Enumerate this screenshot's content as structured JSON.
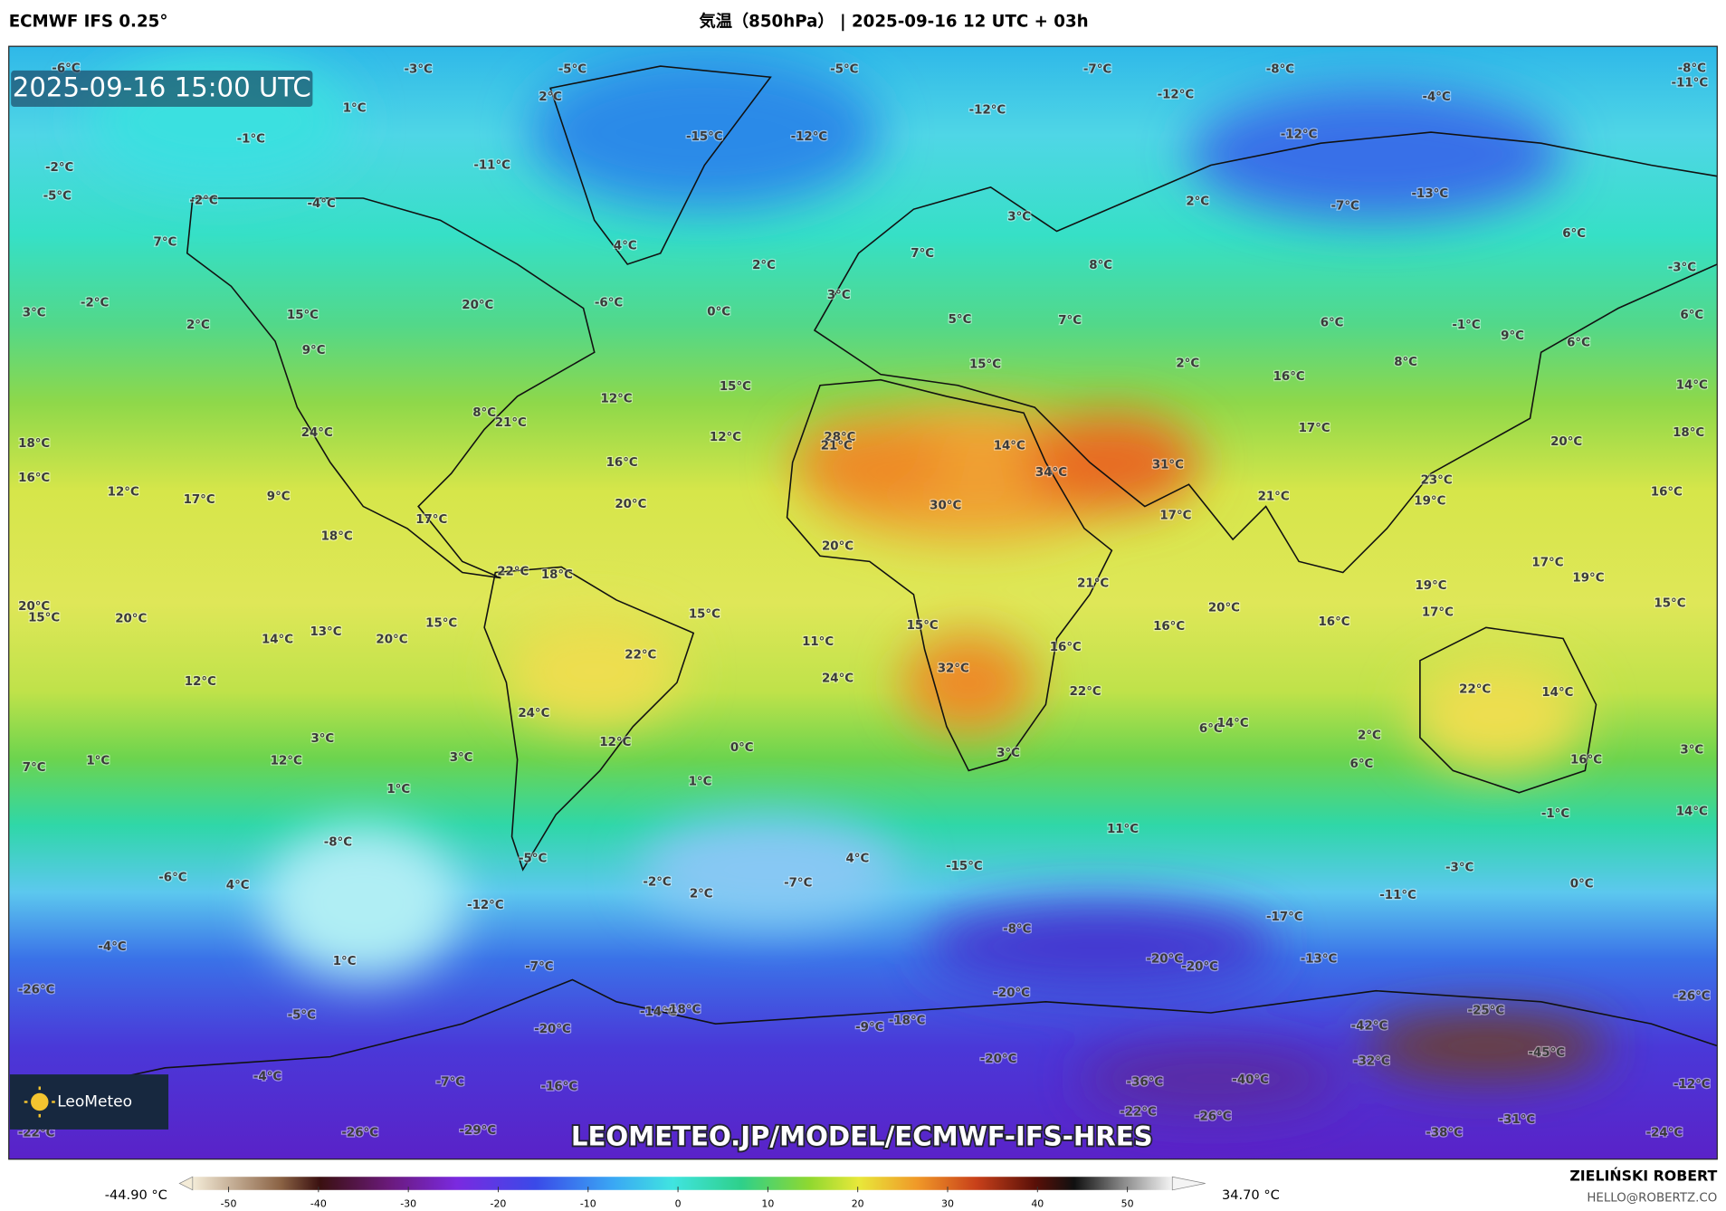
{
  "header": {
    "model": "ECMWF IFS 0.25°",
    "title": "気温（850hPa） | 2025-09-16 12 UTC + 03h"
  },
  "map": {
    "timestamp": "2025-09-16 15:00 UTC",
    "logo": "LeoMeteo",
    "watermark": "LEOMETEO.JP/MODEL/ECMWF-IFS-HRES",
    "labels": [
      "-6°C",
      "-3°C",
      "-5°C",
      "-5°C",
      "-7°C",
      "-8°C",
      "-8°C",
      "-11°C",
      "2°C",
      "1°C",
      "-12°C",
      "-12°C",
      "-4°C",
      "-1°C",
      "-15°C",
      "-12°C",
      "-12°C",
      "-2°C",
      "-11°C",
      "-5°C",
      "-2°C",
      "-4°C",
      "2°C",
      "-7°C",
      "-13°C",
      "7°C",
      "4°C",
      "3°C",
      "7°C",
      "2°C",
      "8°C",
      "6°C",
      "-3°C",
      "-2°C",
      "3°C",
      "20°C",
      "-6°C",
      "0°C",
      "3°C",
      "2°C",
      "15°C",
      "5°C",
      "7°C",
      "6°C",
      "-1°C",
      "9°C",
      "6°C",
      "6°C",
      "9°C",
      "15°C",
      "2°C",
      "8°C",
      "16°C",
      "14°C",
      "15°C",
      "12°C",
      "8°C",
      "21°C",
      "24°C",
      "12°C",
      "28°C",
      "21°C",
      "14°C",
      "17°C",
      "18°C",
      "18°C",
      "20°C",
      "34°C",
      "31°C",
      "16°C",
      "16°C",
      "23°C",
      "12°C",
      "17°C",
      "9°C",
      "21°C",
      "19°C",
      "16°C",
      "20°C",
      "30°C",
      "17°C",
      "17°C",
      "18°C",
      "20°C",
      "22°C",
      "18°C",
      "21°C",
      "17°C",
      "19°C",
      "19°C",
      "20°C",
      "15°C",
      "20°C",
      "20°C",
      "17°C",
      "15°C",
      "15°C",
      "15°C",
      "16°C",
      "16°C",
      "14°C",
      "13°C",
      "20°C",
      "15°C",
      "11°C",
      "16°C",
      "22°C",
      "12°C",
      "24°C",
      "32°C",
      "22°C",
      "22°C",
      "14°C",
      "24°C",
      "3°C",
      "12°C",
      "6°C",
      "14°C",
      "2°C",
      "3°C",
      "7°C",
      "1°C",
      "12°C",
      "3°C",
      "0°C",
      "3°C",
      "6°C",
      "16°C",
      "1°C",
      "1°C",
      "-1°C",
      "14°C",
      "11°C",
      "-8°C",
      "-5°C",
      "4°C",
      "-15°C",
      "-3°C",
      "-6°C",
      "4°C",
      "-2°C",
      "-7°C",
      "2°C",
      "0°C",
      "-11°C",
      "-12°C",
      "-17°C",
      "-8°C",
      "-4°C",
      "1°C",
      "-20°C",
      "-20°C",
      "-13°C",
      "-7°C",
      "-26°C",
      "-20°C",
      "-26°C",
      "-5°C",
      "-14°C",
      "-18°C",
      "-25°C",
      "-20°C",
      "-9°C",
      "-18°C",
      "-42°C",
      "-45°C",
      "-20°C",
      "-32°C",
      "-4°C",
      "-7°C",
      "-36°C",
      "-40°C",
      "-12°C",
      "-16°C",
      "-22°C",
      "-26°C",
      "-31°C",
      "-22°C",
      "-26°C",
      "-29°C",
      "-38°C",
      "-24°C"
    ]
  },
  "colorbar": {
    "min_label": "-44.90 °C",
    "max_label": "34.70 °C",
    "range": [
      -54,
      55
    ],
    "ticks": [
      -50,
      -40,
      -30,
      -20,
      -10,
      0,
      10,
      20,
      30,
      40,
      50
    ]
  },
  "footer": {
    "author": "ZIELIŃSKI ROBERT",
    "email": "HELLO@ROBERTZ.CO"
  }
}
